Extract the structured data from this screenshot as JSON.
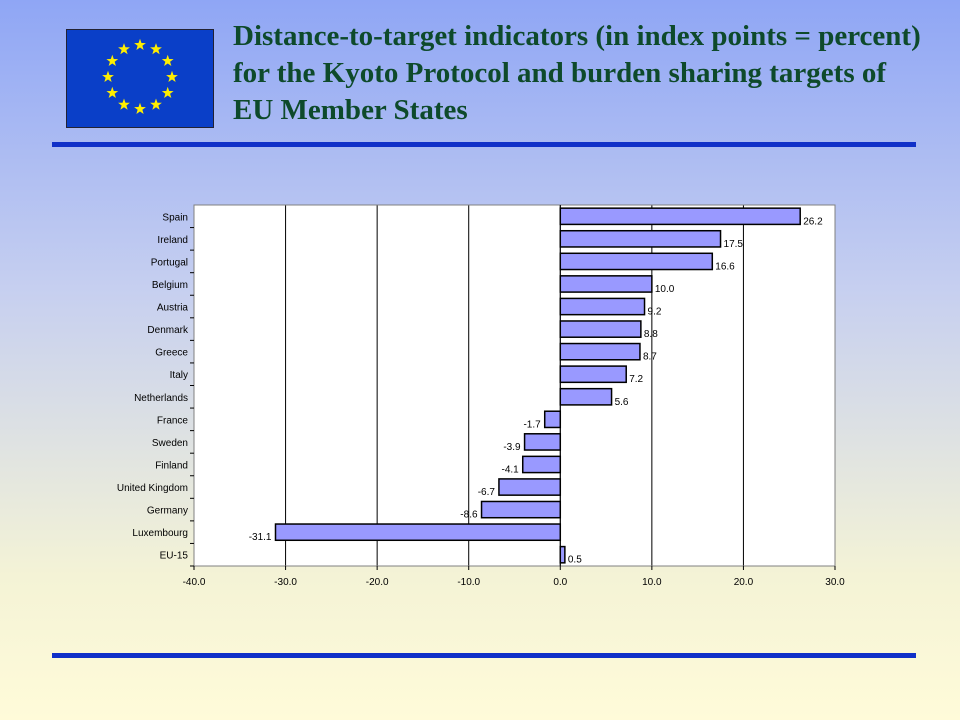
{
  "slide": {
    "title": "Distance-to-target indicators (in index points = percent) for the Kyoto Protocol and burden sharing targets of EU Member States",
    "flag_icon": "eu-flag-icon"
  },
  "colors": {
    "bar_fill": "#9999ff",
    "title_text": "#0e4a2b",
    "rule": "#1030c8",
    "flag_blue": "#0a3fc8",
    "flag_star": "#ffee00"
  },
  "chart_data": {
    "type": "bar",
    "orientation": "horizontal",
    "categories": [
      "Spain",
      "Ireland",
      "Portugal",
      "Belgium",
      "Austria",
      "Denmark",
      "Greece",
      "Italy",
      "Netherlands",
      "France",
      "Sweden",
      "Finland",
      "United Kingdom",
      "Germany",
      "Luxembourg",
      "EU-15"
    ],
    "values": [
      26.2,
      17.5,
      16.6,
      10.0,
      9.2,
      8.8,
      8.7,
      7.2,
      5.6,
      -1.7,
      -3.9,
      -4.1,
      -6.7,
      -8.6,
      -31.1,
      0.5
    ],
    "value_labels": [
      "26.2",
      "17.5",
      "16.6",
      "10.0",
      "9.2",
      "8.8",
      "8.7",
      "7.2",
      "5.6",
      "-1.7",
      "-3.9",
      "-4.1",
      "-6.7",
      "-8.6",
      "-31.1",
      "0.5"
    ],
    "xlim": [
      -40,
      30
    ],
    "xticks": [
      -40,
      -30,
      -20,
      -10,
      0,
      10,
      20,
      30
    ],
    "xtick_labels": [
      "-40.0",
      "-30.0",
      "-20.0",
      "-10.0",
      "0.0",
      "10.0",
      "20.0",
      "30.0"
    ],
    "grid": "vertical",
    "title": "",
    "xlabel": "",
    "ylabel": ""
  }
}
